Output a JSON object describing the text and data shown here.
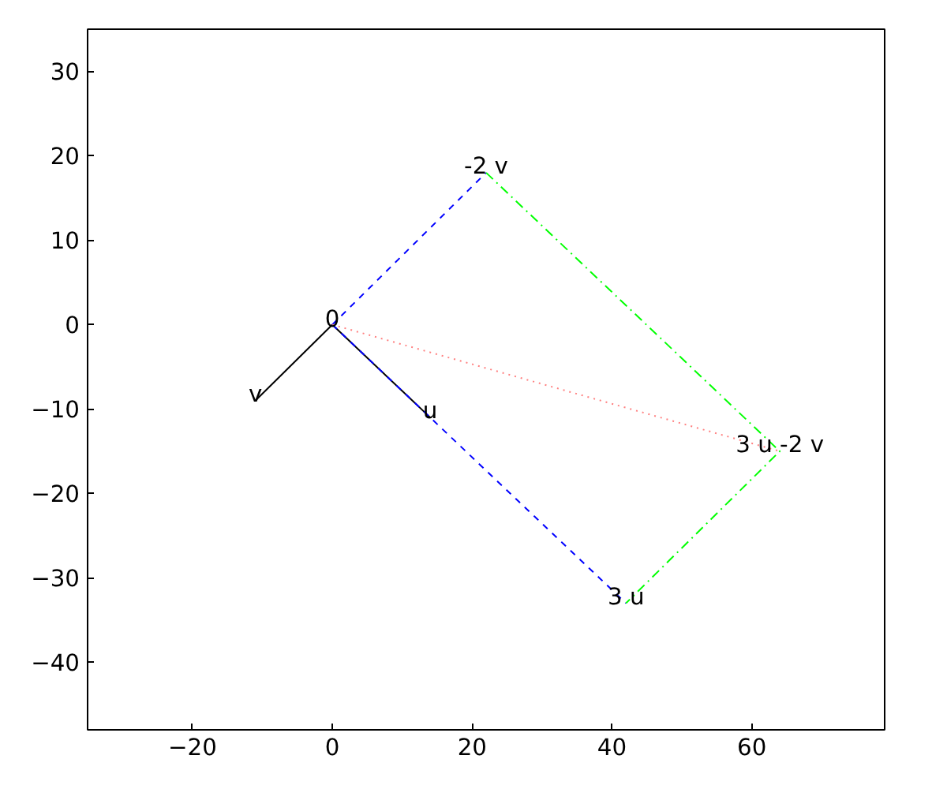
{
  "chart_data": {
    "type": "line",
    "xlim": [
      -35,
      79
    ],
    "ylim": [
      -48,
      35
    ],
    "xticks": [
      -20,
      0,
      20,
      40,
      60
    ],
    "yticks": [
      -40,
      -30,
      -20,
      -10,
      0,
      10,
      20,
      30
    ],
    "grid": false,
    "marker": "none",
    "series": [
      {
        "color": "#000000",
        "line_style": "solid",
        "x": [
          0,
          14
        ],
        "values": [
          0,
          -11
        ]
      },
      {
        "color": "#000000",
        "line_style": "solid",
        "x": [
          0,
          -11
        ],
        "values": [
          0,
          -9
        ]
      },
      {
        "color": "#0000ff",
        "line_style": "dashed",
        "x": [
          0,
          22
        ],
        "values": [
          0,
          18
        ]
      },
      {
        "color": "#0000ff",
        "line_style": "dashed",
        "x": [
          0,
          42
        ],
        "values": [
          0,
          -33
        ]
      },
      {
        "color": "#00ff00",
        "line_style": "dashdot",
        "x": [
          22,
          64,
          42
        ],
        "values": [
          18,
          -15,
          -33
        ]
      },
      {
        "color": "#ff8080",
        "line_style": "dotted",
        "x": [
          0,
          64
        ],
        "values": [
          0,
          -15
        ]
      }
    ],
    "annotations": [
      {
        "text": "0",
        "x": 0,
        "y": 0
      },
      {
        "text": "u",
        "x": 14,
        "y": -11
      },
      {
        "text": "v",
        "x": -11,
        "y": -9
      },
      {
        "text": "-2 v",
        "x": 22,
        "y": 18
      },
      {
        "text": "3 u",
        "x": 42,
        "y": -33
      },
      {
        "text": "3 u -2 v",
        "x": 64,
        "y": -15
      }
    ]
  }
}
